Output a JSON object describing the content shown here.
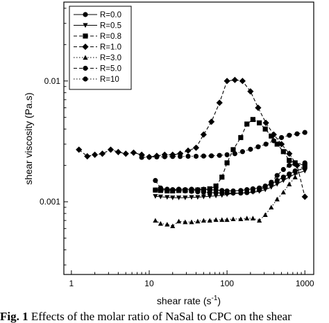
{
  "chart_data": {
    "type": "scatter",
    "title": "",
    "xlabel": "shear rate (s",
    "xlabel_superscript": "-1",
    "xlabel_suffix": ")",
    "ylabel": "shear viscosity (Pa.s)",
    "xscale": "log",
    "yscale": "log",
    "xlim": [
      0.8,
      1300
    ],
    "ylim": [
      0.00025,
      0.045
    ],
    "grid": false,
    "legend_position": "top-left",
    "x_ticks": [
      {
        "value": 1,
        "label": "1"
      },
      {
        "value": 10,
        "label": "10"
      },
      {
        "value": 100,
        "label": "100"
      },
      {
        "value": 1000,
        "label": "1000"
      }
    ],
    "y_ticks": [
      {
        "value": 0.001,
        "label": "0.001"
      },
      {
        "value": 0.01,
        "label": "0.01"
      }
    ],
    "series": [
      {
        "name": "R=0.0",
        "marker": "circle",
        "line": "solid",
        "x": [
          12,
          14,
          17,
          20,
          24,
          29,
          35,
          42,
          50,
          60,
          72,
          86,
          100,
          120,
          150,
          180,
          215,
          260,
          310,
          370,
          440,
          530,
          630,
          750,
          1000
        ],
        "y": [
          0.00125,
          0.00126,
          0.00127,
          0.00126,
          0.00127,
          0.00126,
          0.00127,
          0.00126,
          0.00127,
          0.00126,
          0.00125,
          0.00124,
          0.00123,
          0.00123,
          0.00124,
          0.00126,
          0.00128,
          0.0013,
          0.00135,
          0.0014,
          0.0015,
          0.0016,
          0.0017,
          0.0018,
          0.0019
        ]
      },
      {
        "name": "R=0.5",
        "marker": "triangle-down",
        "line": "solid",
        "x": [
          12,
          14,
          17,
          20,
          24,
          29,
          35,
          42,
          50,
          60,
          72,
          86,
          100,
          120,
          150,
          180,
          215,
          260,
          310,
          370,
          440,
          530,
          630,
          750,
          1000
        ],
        "y": [
          0.00111,
          0.0011,
          0.00109,
          0.00108,
          0.00108,
          0.00108,
          0.00109,
          0.00109,
          0.0011,
          0.00111,
          0.00112,
          0.00113,
          0.00115,
          0.00117,
          0.00118,
          0.00119,
          0.0012,
          0.00122,
          0.00126,
          0.00132,
          0.0014,
          0.0015,
          0.0016,
          0.0017,
          0.0018
        ]
      },
      {
        "name": "R=0.8",
        "marker": "square",
        "line": "dashed",
        "x": [
          12,
          14,
          17,
          20,
          24,
          29,
          35,
          42,
          50,
          60,
          72,
          86,
          100,
          120,
          150,
          180,
          215,
          260,
          310,
          370,
          440,
          530,
          630,
          750,
          1000
        ],
        "y": [
          0.00125,
          0.00124,
          0.00123,
          0.00123,
          0.00124,
          0.00124,
          0.00124,
          0.00125,
          0.00126,
          0.00128,
          0.00135,
          0.0016,
          0.0021,
          0.0027,
          0.0034,
          0.0044,
          0.0048,
          0.0045,
          0.004,
          0.0035,
          0.003,
          0.0026,
          0.0022,
          0.0021,
          0.002
        ]
      },
      {
        "name": "R=1.0",
        "marker": "diamond",
        "line": "dashed",
        "x": [
          1.25,
          1.6,
          2.0,
          2.5,
          3.2,
          4.0,
          5.0,
          6.3,
          8.0,
          10,
          12.5,
          15.8,
          20,
          25,
          31.6,
          40,
          50,
          63,
          80,
          100,
          126,
          158,
          200,
          251,
          316,
          398,
          501,
          631,
          794,
          1000
        ],
        "y": [
          0.0027,
          0.00238,
          0.00245,
          0.0025,
          0.0027,
          0.00258,
          0.0025,
          0.00255,
          0.00245,
          0.00235,
          0.0024,
          0.00245,
          0.00245,
          0.0025,
          0.00265,
          0.0028,
          0.0036,
          0.0046,
          0.0066,
          0.01,
          0.0102,
          0.01,
          0.0082,
          0.006,
          0.0045,
          0.0036,
          0.003,
          0.0025,
          0.002,
          0.0011
        ]
      },
      {
        "name": "R=3.0",
        "marker": "triangle-up",
        "line": "dotted",
        "x": [
          12,
          14,
          17,
          20,
          24,
          29,
          35,
          42,
          50,
          60,
          72,
          86,
          100,
          120,
          150,
          180,
          215,
          260,
          310,
          370,
          440,
          530,
          630,
          750,
          1000
        ],
        "y": [
          0.0007,
          0.00066,
          0.00065,
          0.00063,
          0.00069,
          0.00068,
          0.00068,
          0.00069,
          0.0007,
          0.0007,
          0.00071,
          0.00071,
          0.00071,
          0.00072,
          0.00072,
          0.00073,
          0.00073,
          0.0007,
          0.00078,
          0.0009,
          0.00105,
          0.0012,
          0.0014,
          0.0016,
          0.0021
        ]
      },
      {
        "name": "R=5.0",
        "marker": "circle",
        "line": "dashed",
        "x": [
          12,
          14,
          17,
          20,
          24,
          29,
          35,
          42,
          50,
          60,
          72,
          86,
          100,
          120,
          150,
          180,
          215,
          260,
          310,
          370,
          440,
          530,
          630,
          750,
          1000
        ],
        "y": [
          0.0015,
          0.0013,
          0.00126,
          0.00125,
          0.00124,
          0.00123,
          0.00122,
          0.00121,
          0.0012,
          0.00119,
          0.00119,
          0.00118,
          0.00118,
          0.00118,
          0.00118,
          0.00119,
          0.00122,
          0.00125,
          0.00132,
          0.00145,
          0.00165,
          0.00185,
          0.002,
          0.00205,
          0.0021
        ]
      },
      {
        "name": "R=10",
        "marker": "circle",
        "line": "dotted",
        "x": [
          8,
          10,
          12.5,
          15.8,
          20,
          25,
          31.6,
          40,
          50,
          63,
          80,
          100,
          126,
          158,
          200,
          251,
          316,
          398,
          501,
          631,
          794,
          1000
        ],
        "y": [
          0.00233,
          0.00234,
          0.00235,
          0.00236,
          0.00237,
          0.00237,
          0.00238,
          0.00238,
          0.00239,
          0.0024,
          0.00242,
          0.00245,
          0.0025,
          0.0026,
          0.00272,
          0.00285,
          0.003,
          0.0032,
          0.0034,
          0.00355,
          0.00365,
          0.00375
        ]
      }
    ]
  },
  "caption": {
    "label": "Fig. 1",
    "text": "Effects of the molar ratio of NaSal to CPC on the shear"
  }
}
